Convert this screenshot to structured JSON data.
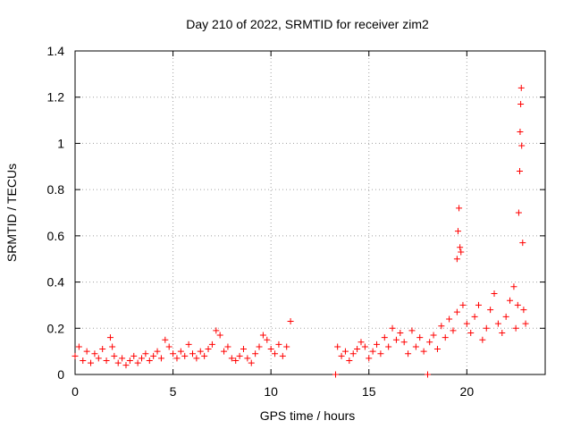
{
  "chart_data": {
    "type": "scatter",
    "title": "Day 210 of 2022, SRMTID for receiver zim2",
    "xlabel": "GPS time / hours",
    "ylabel": "SRMTID / TECUs",
    "xlim": [
      0,
      24
    ],
    "ylim": [
      0,
      1.4
    ],
    "grid": true,
    "legend": "none",
    "x_ticks": [
      0,
      5,
      10,
      15,
      20
    ],
    "y_ticks": [
      0,
      0.2,
      0.4,
      0.6,
      0.8,
      1.0,
      1.2,
      1.4
    ],
    "x_tick_labels": [
      "0",
      "5",
      "10",
      "15",
      "20"
    ],
    "y_tick_labels": [
      "0",
      "0.2",
      "0.4",
      "0.6",
      "0.8",
      "1",
      "1.2",
      "1.4"
    ],
    "marker": "+",
    "series": [
      {
        "name": "SRMTID",
        "color": "#ff0000",
        "points": [
          [
            0.0,
            0.08
          ],
          [
            0.2,
            0.12
          ],
          [
            0.4,
            0.06
          ],
          [
            0.6,
            0.1
          ],
          [
            0.8,
            0.05
          ],
          [
            1.0,
            0.09
          ],
          [
            1.2,
            0.07
          ],
          [
            1.4,
            0.11
          ],
          [
            1.6,
            0.06
          ],
          [
            1.8,
            0.16
          ],
          [
            1.9,
            0.12
          ],
          [
            2.0,
            0.08
          ],
          [
            2.2,
            0.05
          ],
          [
            2.4,
            0.07
          ],
          [
            2.6,
            0.04
          ],
          [
            2.8,
            0.06
          ],
          [
            3.0,
            0.08
          ],
          [
            3.2,
            0.05
          ],
          [
            3.4,
            0.07
          ],
          [
            3.6,
            0.09
          ],
          [
            3.8,
            0.06
          ],
          [
            4.0,
            0.08
          ],
          [
            4.2,
            0.1
          ],
          [
            4.4,
            0.07
          ],
          [
            4.6,
            0.15
          ],
          [
            4.8,
            0.12
          ],
          [
            5.0,
            0.09
          ],
          [
            5.2,
            0.07
          ],
          [
            5.4,
            0.1
          ],
          [
            5.6,
            0.08
          ],
          [
            5.8,
            0.13
          ],
          [
            6.0,
            0.09
          ],
          [
            6.2,
            0.07
          ],
          [
            6.4,
            0.1
          ],
          [
            6.6,
            0.08
          ],
          [
            6.8,
            0.11
          ],
          [
            7.0,
            0.13
          ],
          [
            7.2,
            0.19
          ],
          [
            7.4,
            0.17
          ],
          [
            7.6,
            0.1
          ],
          [
            7.8,
            0.12
          ],
          [
            8.0,
            0.07
          ],
          [
            8.2,
            0.06
          ],
          [
            8.4,
            0.08
          ],
          [
            8.6,
            0.11
          ],
          [
            8.8,
            0.07
          ],
          [
            9.0,
            0.05
          ],
          [
            9.2,
            0.09
          ],
          [
            9.4,
            0.12
          ],
          [
            9.6,
            0.17
          ],
          [
            9.8,
            0.15
          ],
          [
            10.0,
            0.11
          ],
          [
            10.2,
            0.09
          ],
          [
            10.4,
            0.13
          ],
          [
            10.6,
            0.08
          ],
          [
            10.8,
            0.12
          ],
          [
            11.0,
            0.23
          ],
          [
            13.3,
            0.0
          ],
          [
            13.4,
            0.12
          ],
          [
            13.6,
            0.08
          ],
          [
            13.8,
            0.1
          ],
          [
            14.0,
            0.06
          ],
          [
            14.2,
            0.09
          ],
          [
            14.4,
            0.11
          ],
          [
            14.6,
            0.14
          ],
          [
            14.8,
            0.12
          ],
          [
            15.0,
            0.07
          ],
          [
            15.2,
            0.1
          ],
          [
            15.4,
            0.13
          ],
          [
            15.6,
            0.09
          ],
          [
            15.8,
            0.16
          ],
          [
            16.0,
            0.12
          ],
          [
            16.2,
            0.2
          ],
          [
            16.4,
            0.15
          ],
          [
            16.6,
            0.18
          ],
          [
            16.8,
            0.14
          ],
          [
            17.0,
            0.09
          ],
          [
            17.2,
            0.19
          ],
          [
            17.4,
            0.12
          ],
          [
            17.6,
            0.16
          ],
          [
            17.8,
            0.1
          ],
          [
            18.0,
            0.0
          ],
          [
            18.1,
            0.14
          ],
          [
            18.3,
            0.17
          ],
          [
            18.5,
            0.11
          ],
          [
            18.7,
            0.21
          ],
          [
            18.9,
            0.16
          ],
          [
            19.1,
            0.24
          ],
          [
            19.3,
            0.19
          ],
          [
            19.5,
            0.27
          ],
          [
            19.5,
            0.5
          ],
          [
            19.55,
            0.62
          ],
          [
            19.6,
            0.72
          ],
          [
            19.65,
            0.55
          ],
          [
            19.7,
            0.53
          ],
          [
            19.8,
            0.3
          ],
          [
            20.0,
            0.22
          ],
          [
            20.2,
            0.18
          ],
          [
            20.4,
            0.25
          ],
          [
            20.6,
            0.3
          ],
          [
            20.8,
            0.15
          ],
          [
            21.0,
            0.2
          ],
          [
            21.2,
            0.28
          ],
          [
            21.4,
            0.35
          ],
          [
            21.6,
            0.22
          ],
          [
            21.8,
            0.18
          ],
          [
            22.0,
            0.25
          ],
          [
            22.2,
            0.32
          ],
          [
            22.4,
            0.38
          ],
          [
            22.5,
            0.2
          ],
          [
            22.6,
            0.3
          ],
          [
            22.65,
            0.7
          ],
          [
            22.7,
            0.88
          ],
          [
            22.72,
            1.05
          ],
          [
            22.75,
            1.17
          ],
          [
            22.78,
            1.24
          ],
          [
            22.8,
            0.99
          ],
          [
            22.85,
            0.57
          ],
          [
            22.9,
            0.28
          ],
          [
            23.0,
            0.22
          ]
        ]
      }
    ]
  }
}
